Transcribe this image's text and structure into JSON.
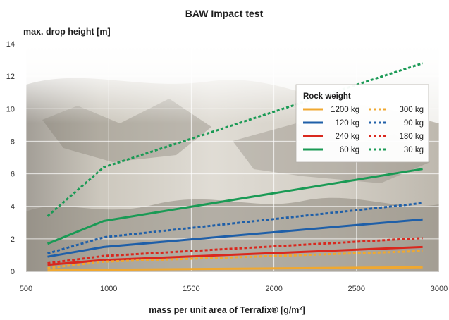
{
  "chart_data": {
    "type": "line",
    "title": "BAW Impact test",
    "xlabel": "mass per unit area of Terrafix® [g/m²]",
    "ylabel": "max. drop height [m]",
    "xlim": [
      500,
      3000
    ],
    "ylim": [
      0,
      14
    ],
    "xticks": [
      500,
      1000,
      1500,
      2000,
      2500,
      3000
    ],
    "yticks": [
      0,
      2,
      4,
      6,
      8,
      10,
      12,
      14
    ],
    "grid": true,
    "background": "photo of rock debris",
    "legend": {
      "title": "Rock weight",
      "placement": "top-right"
    },
    "series": [
      {
        "name": "1200 kg",
        "color": "#f0a830",
        "dash": false,
        "x": [
          630,
          970,
          2900
        ],
        "y": [
          0.05,
          0.1,
          0.25
        ]
      },
      {
        "name": "120 kg",
        "color": "#1f5fa8",
        "dash": false,
        "x": [
          630,
          970,
          2900
        ],
        "y": [
          0.9,
          1.5,
          3.2
        ]
      },
      {
        "name": "240 kg",
        "color": "#d9281e",
        "dash": false,
        "x": [
          630,
          970,
          2900
        ],
        "y": [
          0.4,
          0.7,
          1.5
        ]
      },
      {
        "name": "60 kg",
        "color": "#1a9a55",
        "dash": false,
        "x": [
          630,
          970,
          2900
        ],
        "y": [
          1.7,
          3.1,
          6.3
        ]
      },
      {
        "name": "300 kg",
        "color": "#f0a830",
        "dash": true,
        "x": [
          630,
          970,
          2900
        ],
        "y": [
          0.2,
          0.6,
          1.25
        ]
      },
      {
        "name": "90 kg",
        "color": "#1f5fa8",
        "dash": true,
        "x": [
          630,
          970,
          2900
        ],
        "y": [
          1.1,
          2.1,
          4.2
        ]
      },
      {
        "name": "180 kg",
        "color": "#d9281e",
        "dash": true,
        "x": [
          630,
          970,
          2900
        ],
        "y": [
          0.5,
          0.95,
          2.05
        ]
      },
      {
        "name": "30 kg",
        "color": "#1a9a55",
        "dash": true,
        "x": [
          630,
          970,
          2900
        ],
        "y": [
          3.4,
          6.4,
          12.8
        ]
      }
    ]
  }
}
